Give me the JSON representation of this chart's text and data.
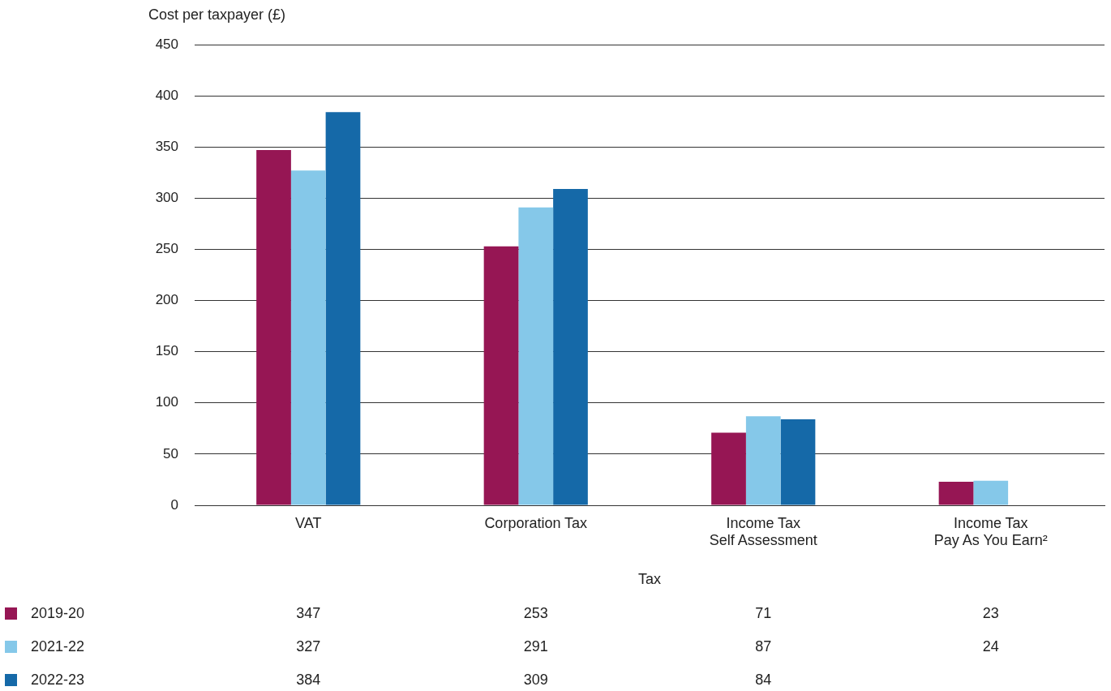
{
  "chart_data": {
    "type": "bar",
    "categories": [
      "VAT",
      "Corporation Tax",
      "Income Tax\nSelf Assessment",
      "Income Tax\nPay As You Earn²"
    ],
    "series": [
      {
        "name": "2019-20",
        "color": "#961654",
        "values": [
          347,
          253,
          71,
          23
        ]
      },
      {
        "name": "2021-22",
        "color": "#85c8e9",
        "values": [
          327,
          291,
          87,
          24
        ]
      },
      {
        "name": "2022-23",
        "color": "#1569a8",
        "values": [
          384,
          309,
          84,
          null
        ]
      }
    ],
    "ylabel": "Cost per taxpayer (£)",
    "xlabel": "Tax",
    "ylim": [
      0,
      450
    ],
    "yticks": [
      0,
      50,
      100,
      150,
      200,
      250,
      300,
      350,
      400,
      450
    ],
    "grid": "y",
    "legend": "bottom",
    "data_labels": true
  }
}
